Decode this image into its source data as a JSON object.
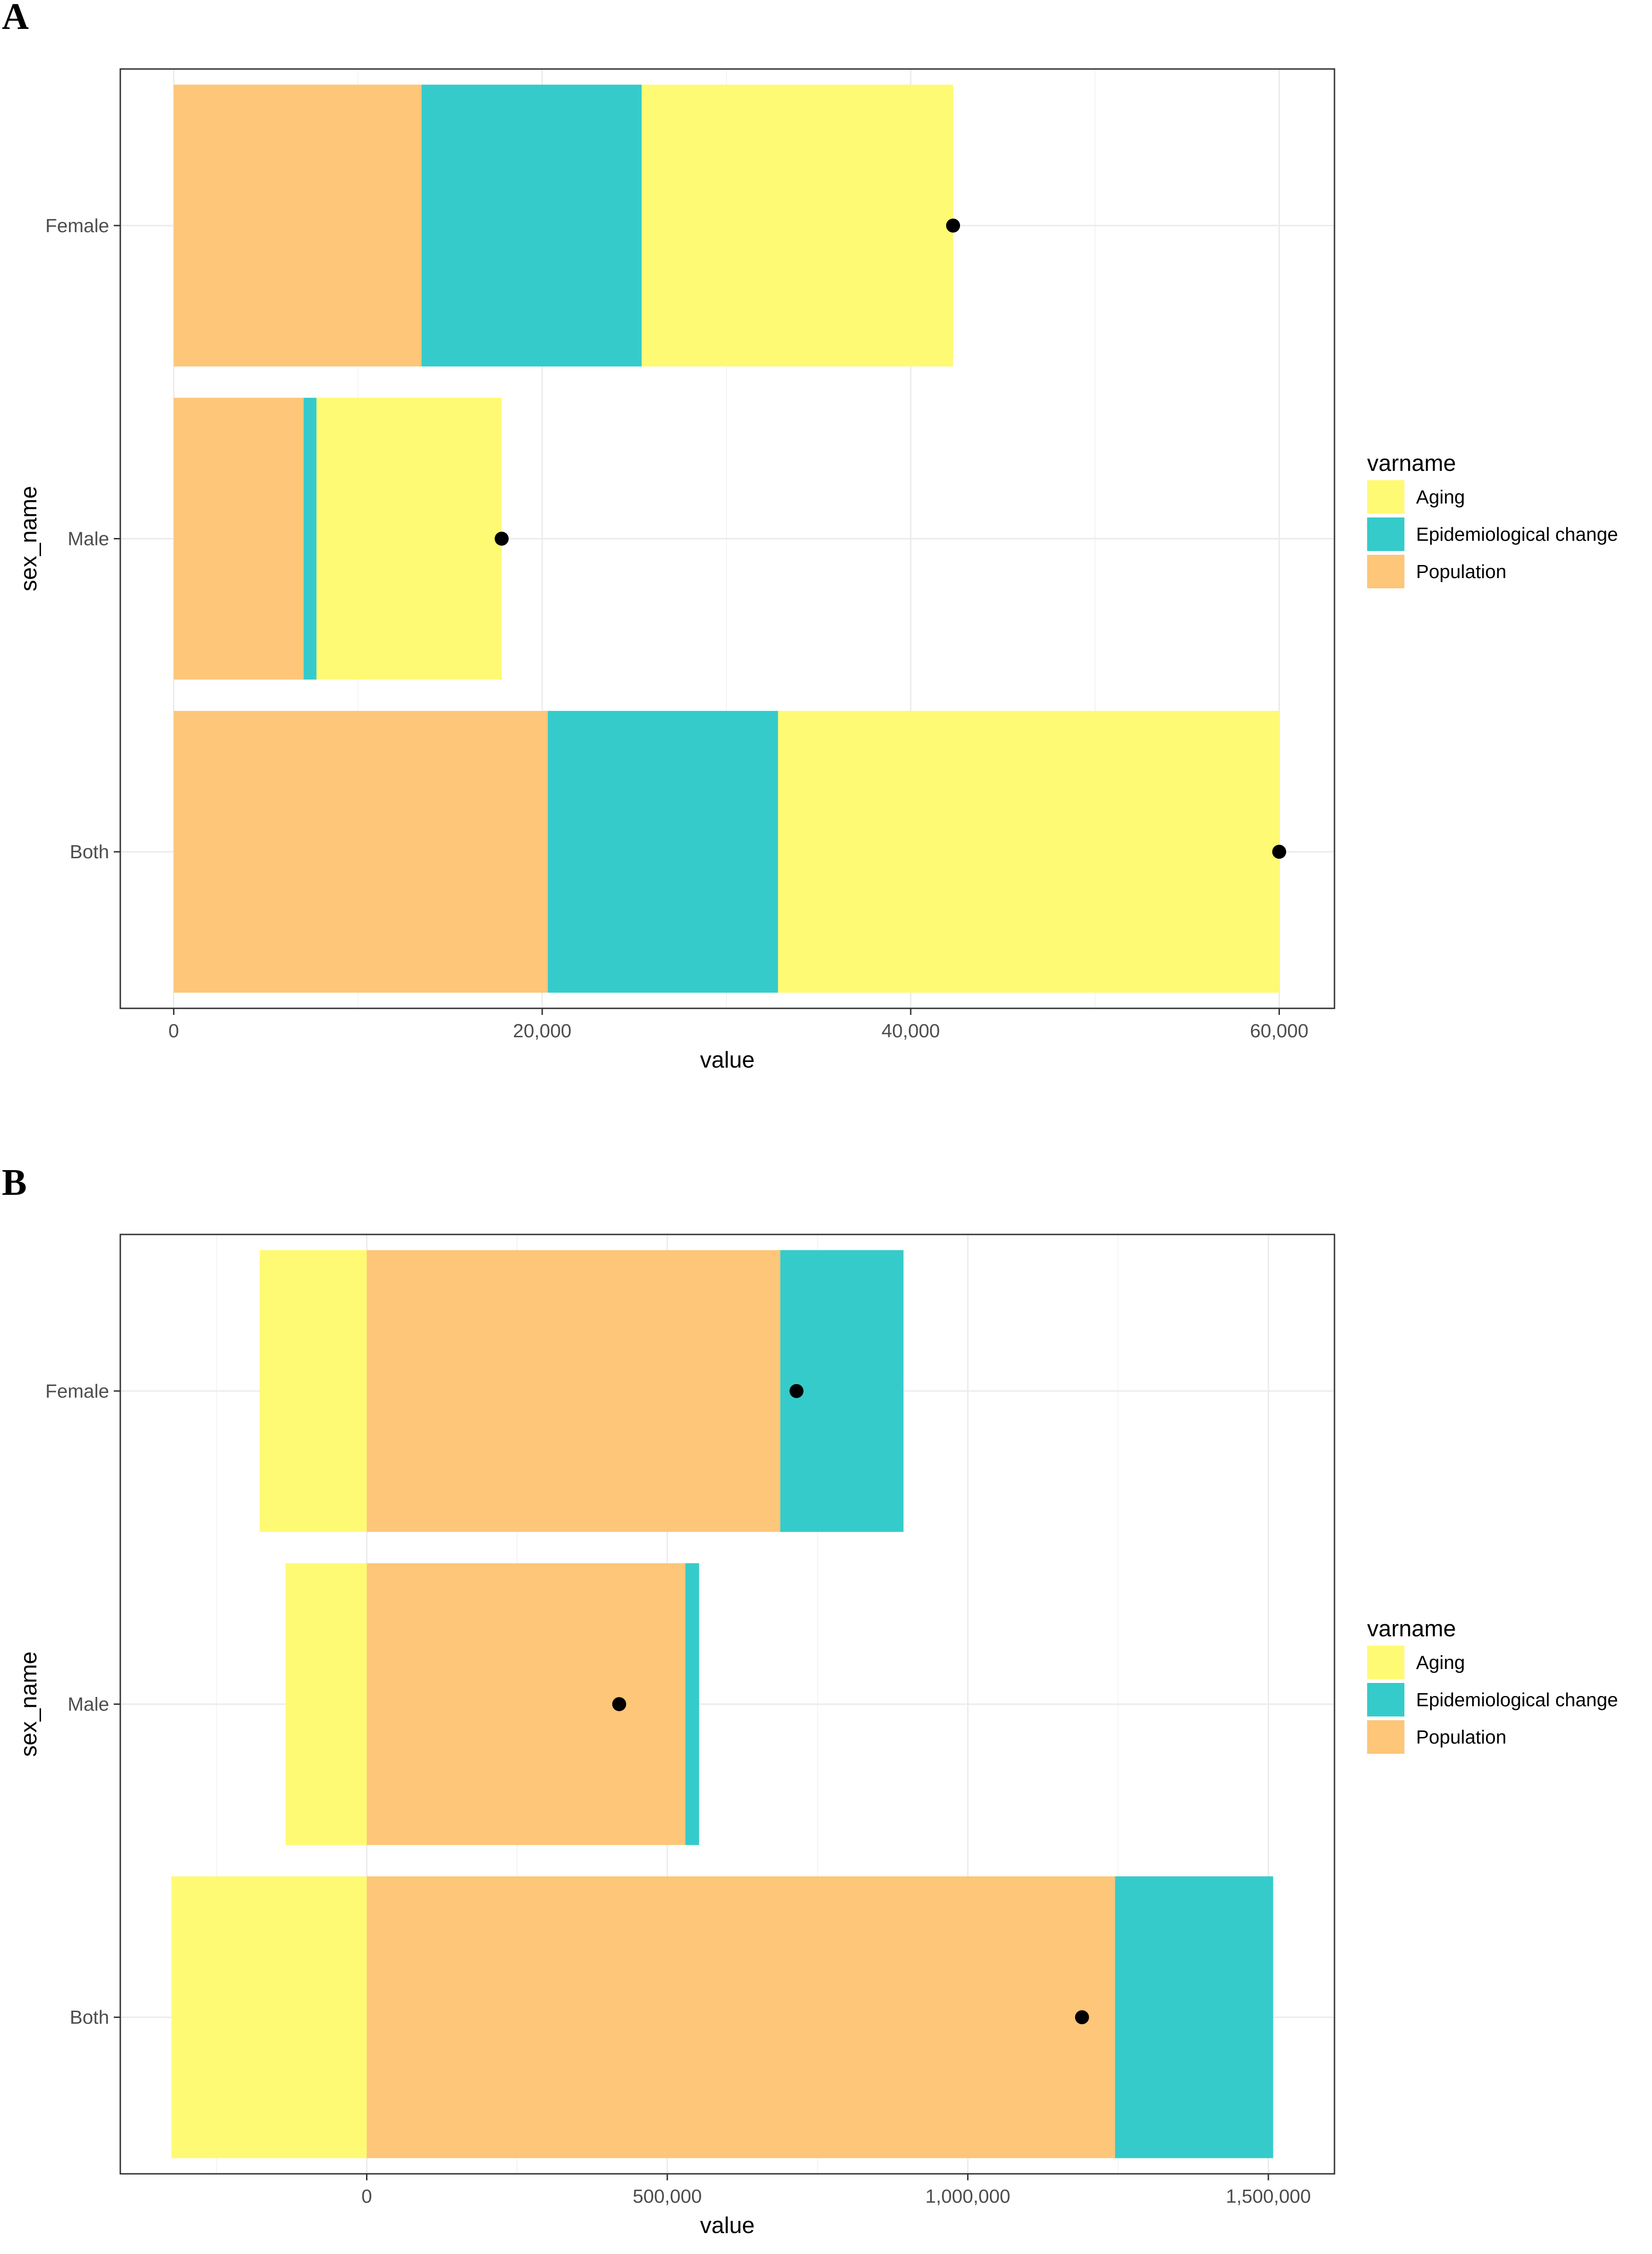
{
  "colors": {
    "Aging": "#FFFA73",
    "Epidemiological change": "#35CBCB",
    "Population": "#FDC679",
    "point": "#000000"
  },
  "chart_data": [
    {
      "panel_label": "A",
      "type": "bar",
      "orientation": "horizontal",
      "stacked": true,
      "xlabel": "value",
      "ylabel": "sex_name",
      "categories": [
        "Both",
        "Male",
        "Female"
      ],
      "xlim": [
        -2900,
        63000
      ],
      "xticks": [
        0,
        20000,
        40000,
        60000
      ],
      "xtick_labels": [
        "0",
        "20,000",
        "40,000",
        "60,000"
      ],
      "segments": [
        {
          "sex": "Female",
          "name": "Population",
          "start": 0,
          "end": 13450
        },
        {
          "sex": "Female",
          "name": "Epidemiological change",
          "start": 13450,
          "end": 25400
        },
        {
          "sex": "Female",
          "name": "Aging",
          "start": 25400,
          "end": 42300
        },
        {
          "sex": "Male",
          "name": "Population",
          "start": 0,
          "end": 7050
        },
        {
          "sex": "Male",
          "name": "Epidemiological change",
          "start": 7050,
          "end": 7750
        },
        {
          "sex": "Male",
          "name": "Aging",
          "start": 7750,
          "end": 17800
        },
        {
          "sex": "Both",
          "name": "Population",
          "start": 0,
          "end": 20300
        },
        {
          "sex": "Both",
          "name": "Epidemiological change",
          "start": 20300,
          "end": 32800
        },
        {
          "sex": "Both",
          "name": "Aging",
          "start": 32800,
          "end": 60000
        }
      ],
      "totals": [
        {
          "sex": "Female",
          "value": 42300
        },
        {
          "sex": "Male",
          "value": 17800
        },
        {
          "sex": "Both",
          "value": 60000
        }
      ],
      "legend": {
        "title": "varname",
        "position": "right",
        "entries": [
          "Aging",
          "Epidemiological change",
          "Population"
        ]
      },
      "grid": true
    },
    {
      "panel_label": "B",
      "type": "bar",
      "orientation": "horizontal",
      "stacked": true,
      "xlabel": "value",
      "ylabel": "sex_name",
      "categories": [
        "Both",
        "Male",
        "Female"
      ],
      "xlim": [
        -410000,
        1610000
      ],
      "xticks": [
        0,
        500000,
        1000000,
        1500000
      ],
      "xtick_labels": [
        "0",
        "500,000",
        "1,000,000",
        "1,500,000"
      ],
      "segments": [
        {
          "sex": "Female",
          "name": "Aging",
          "start": -178000,
          "end": 0
        },
        {
          "sex": "Female",
          "name": "Population",
          "start": 0,
          "end": 688000
        },
        {
          "sex": "Female",
          "name": "Epidemiological change",
          "start": 688000,
          "end": 893000
        },
        {
          "sex": "Male",
          "name": "Aging",
          "start": -135000,
          "end": 0
        },
        {
          "sex": "Male",
          "name": "Population",
          "start": 0,
          "end": 530000
        },
        {
          "sex": "Male",
          "name": "Epidemiological change",
          "start": 530000,
          "end": 553000
        },
        {
          "sex": "Both",
          "name": "Aging",
          "start": -325000,
          "end": 0
        },
        {
          "sex": "Both",
          "name": "Population",
          "start": 0,
          "end": 1245000
        },
        {
          "sex": "Both",
          "name": "Epidemiological change",
          "start": 1245000,
          "end": 1508000
        }
      ],
      "totals": [
        {
          "sex": "Female",
          "value": 715000
        },
        {
          "sex": "Male",
          "value": 420000
        },
        {
          "sex": "Both",
          "value": 1190000
        }
      ],
      "legend": {
        "title": "varname",
        "position": "right",
        "entries": [
          "Aging",
          "Epidemiological change",
          "Population"
        ]
      },
      "grid": true
    }
  ]
}
